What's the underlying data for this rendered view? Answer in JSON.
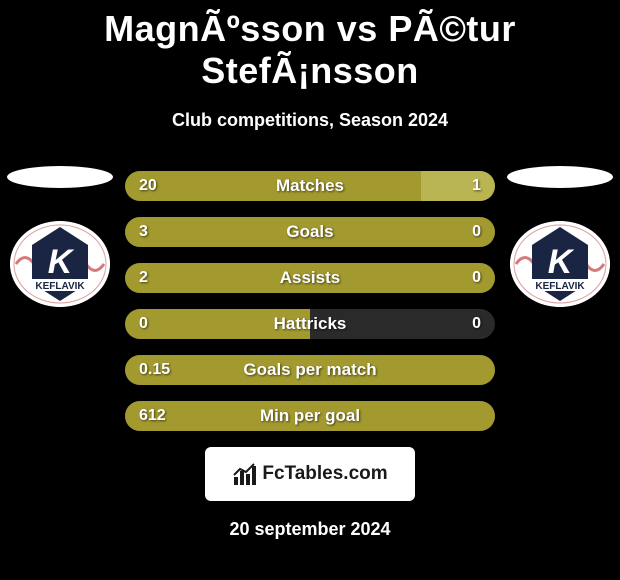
{
  "title": "MagnÃºsson vs PÃ©tur StefÃ¡nsson",
  "subtitle": "Club competitions, Season 2024",
  "date": "20 september 2024",
  "branding": "FcTables.com",
  "colors": {
    "left_bar": "#a39a2f",
    "right_bar": "#bab553",
    "row_bg": "#2a2a2a"
  },
  "club_left": {
    "name": "KEFLAVIK",
    "letter": "K"
  },
  "club_right": {
    "name": "KEFLAVIK",
    "letter": "K"
  },
  "stats": [
    {
      "label": "Matches",
      "left_val": "20",
      "right_val": "1",
      "left_pct": 80,
      "right_pct": 20
    },
    {
      "label": "Goals",
      "left_val": "3",
      "right_val": "0",
      "left_pct": 100,
      "right_pct": 0
    },
    {
      "label": "Assists",
      "left_val": "2",
      "right_val": "0",
      "left_pct": 100,
      "right_pct": 0
    },
    {
      "label": "Hattricks",
      "left_val": "0",
      "right_val": "0",
      "left_pct": 50,
      "right_pct": 0
    },
    {
      "label": "Goals per match",
      "left_val": "0.15",
      "right_val": "",
      "left_pct": 100,
      "right_pct": 0
    },
    {
      "label": "Min per goal",
      "left_val": "612",
      "right_val": "",
      "left_pct": 100,
      "right_pct": 0
    }
  ]
}
